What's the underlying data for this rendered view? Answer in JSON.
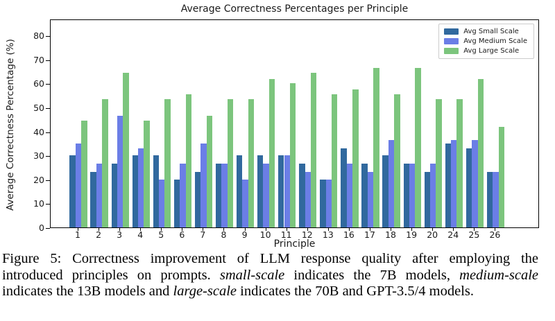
{
  "chart_data": {
    "type": "bar",
    "title": "Average Correctness Percentages per Principle",
    "xlabel": "Principle",
    "ylabel": "Average Correctness Percentage (%)",
    "categories": [
      "1",
      "2",
      "3",
      "4",
      "5",
      "6",
      "7",
      "8",
      "9",
      "10",
      "11",
      "12",
      "13",
      "16",
      "17",
      "18",
      "19",
      "20",
      "24",
      "25",
      "26"
    ],
    "series": [
      {
        "name": "Avg Small Scale",
        "color": "#31699e",
        "values": [
          30,
          23,
          26.5,
          30,
          30,
          20,
          23,
          26.5,
          30,
          30,
          30,
          26.5,
          20,
          33,
          26.5,
          30,
          26.5,
          23,
          35,
          33,
          23
        ]
      },
      {
        "name": "Avg Medium Scale",
        "color": "#6b7ee6",
        "values": [
          35,
          26.5,
          46.5,
          33,
          20,
          26.5,
          35,
          26.5,
          20,
          26.5,
          30,
          23,
          20,
          26.5,
          23,
          36.5,
          26.5,
          26.5,
          36.5,
          36.5,
          23
        ]
      },
      {
        "name": "Avg Large Scale",
        "color": "#7cc57d",
        "values": [
          44.5,
          53.5,
          64.5,
          44.5,
          53.5,
          55.5,
          46.5,
          53.5,
          53.5,
          62,
          60,
          64.5,
          55.5,
          57.5,
          66.5,
          55.5,
          66.5,
          53.5,
          53.5,
          62,
          42
        ]
      }
    ],
    "yticks": [
      0,
      10,
      20,
      30,
      40,
      50,
      60,
      70,
      80
    ],
    "ylim": [
      0,
      87
    ],
    "legend_position": "upper right",
    "grid": false
  },
  "figure": {
    "caption_lines": [
      {
        "segments": [
          {
            "text": "Figure 5: Correctness improvement of LLM response quality after employing the",
            "italic": false
          }
        ]
      },
      {
        "segments": [
          {
            "text": "introduced principles on prompts. ",
            "italic": false
          },
          {
            "text": "small-scale",
            "italic": true
          },
          {
            "text": " indicates the 7B models, ",
            "italic": false
          },
          {
            "text": "medium-scale",
            "italic": true
          }
        ]
      },
      {
        "segments": [
          {
            "text": "indicates the 13B models and ",
            "italic": false
          },
          {
            "text": "large-scale",
            "italic": true
          },
          {
            "text": " indicates the 70B and GPT-3.5/4 models.",
            "italic": false
          }
        ]
      }
    ]
  }
}
